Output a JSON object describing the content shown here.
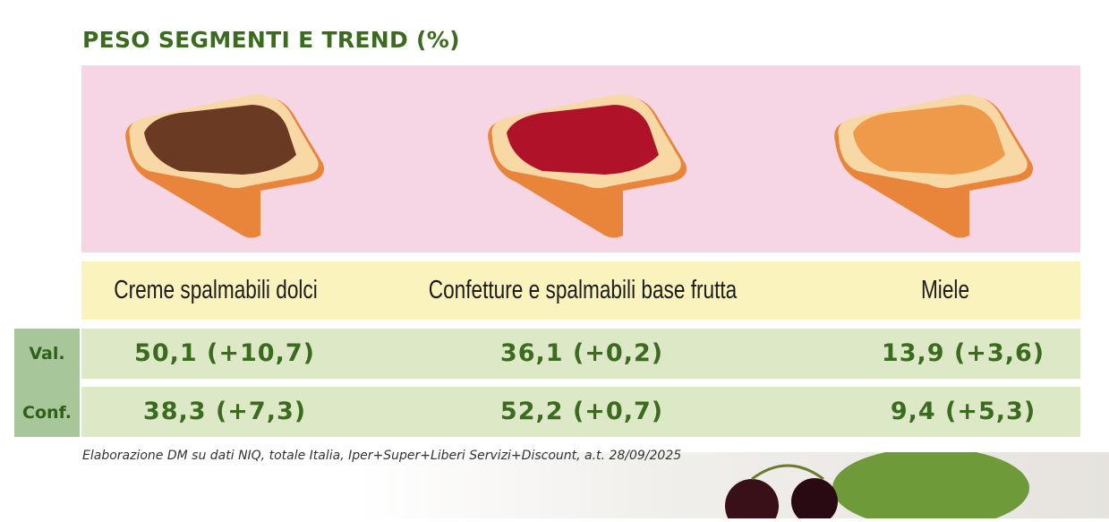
{
  "title": "PESO SEGMENTI E TREND (%)",
  "columns": [
    {
      "label": "Creme spalmabili dolci",
      "spread_color": "#6b3a22",
      "val": "50,1 (+10,7)",
      "conf": "38,3 (+7,3)"
    },
    {
      "label": "Confetture e spalmabili base frutta",
      "spread_color": "#b0122a",
      "val": "36,1 (+0,2)",
      "conf": "52,2 (+0,7)"
    },
    {
      "label": "Miele",
      "spread_color": "#ef9a4a",
      "val": "13,9 (+3,6)",
      "conf": "9,4 (+5,3)"
    }
  ],
  "row_labels": {
    "val": "Val.",
    "conf": "Conf."
  },
  "footnote": "Elaborazione DM su dati NIQ, totale Italia, Iper+Super+Liberi Servizi+Discount, a.t. 28/09/2025",
  "colors": {
    "title": "#3a6b1e",
    "panel": "#f6d6e4",
    "header": "#fbf3bd",
    "row": "#dde8c6",
    "label_col": "#a7c79a"
  }
}
